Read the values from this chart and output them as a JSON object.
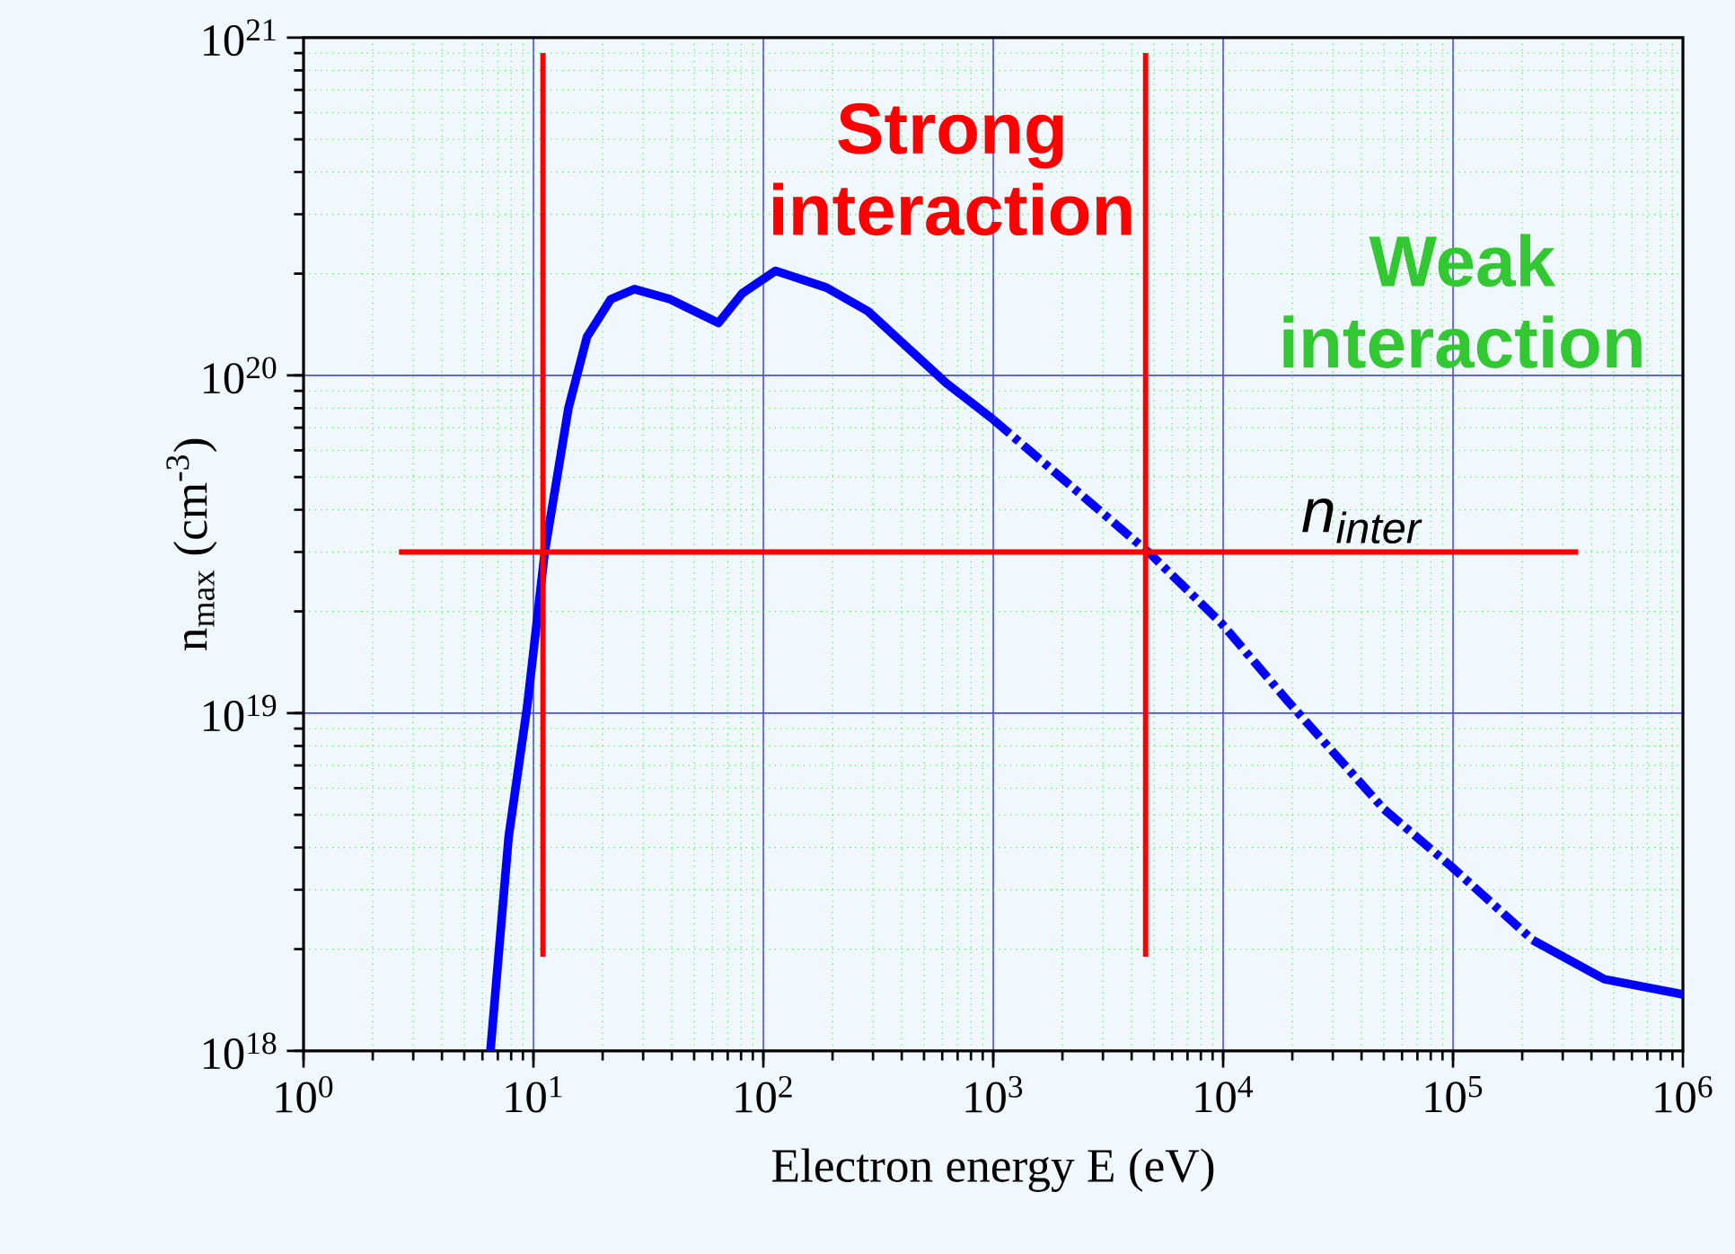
{
  "chart_data": {
    "type": "line",
    "xlabel": "Electron energy E (eV)",
    "ylabel": "n$_{max}$ (cm$^{-3}$)",
    "log": "xy",
    "grid": true,
    "marker": "none",
    "xlim": [
      1,
      1000000
    ],
    "ylim": [
      1e+18,
      1e+21
    ],
    "xticks": [
      {
        "value": 1,
        "label": "10$^{0}$"
      },
      {
        "value": 10,
        "label": "10$^{1}$"
      },
      {
        "value": 100,
        "label": "10$^{2}$"
      },
      {
        "value": 1000,
        "label": "10$^{3}$"
      },
      {
        "value": 10000,
        "label": "10$^{4}$"
      },
      {
        "value": 100000,
        "label": "10$^{5}$"
      },
      {
        "value": 1000000,
        "label": "10$^{6}$"
      }
    ],
    "yticks": [
      {
        "value": 1e+18,
        "label": "10$^{18}$"
      },
      {
        "value": 1e+19,
        "label": "10$^{19}$"
      },
      {
        "value": 1e+20,
        "label": "10$^{20}$"
      },
      {
        "value": 1e+21,
        "label": "10$^{21}$"
      }
    ],
    "series": [
      {
        "color": "#0000ff",
        "line_style": "solid",
        "x": [
          6.5,
          7.8,
          9.4,
          11.2,
          14.2,
          17.1,
          21.7,
          27.5,
          39.4,
          63.8,
          81,
          113,
          188,
          285,
          623,
          1000
        ],
        "values": [
          1e+18,
          4.3e+18,
          1.05e+19,
          3e+19,
          8e+19,
          1.3e+20,
          1.68e+20,
          1.8e+20,
          1.68e+20,
          1.43e+20,
          1.75e+20,
          2.04e+20,
          1.82e+20,
          1.55e+20,
          9.5e+19,
          7.4e+19
        ]
      },
      {
        "color": "#0000ff",
        "line_style": "dashed",
        "x": [
          1000,
          4800,
          9800,
          19000,
          50000,
          99000,
          222000
        ],
        "values": [
          7.4e+19,
          2.97e+19,
          1.85e+19,
          1.09e+19,
          5.2e+18,
          3.5e+18,
          2.13e+18
        ]
      },
      {
        "color": "#0000ff",
        "line_style": "solid",
        "x": [
          222000,
          456000,
          1000000
        ],
        "values": [
          2.13e+18,
          1.63e+18,
          1.47e+18
        ]
      }
    ],
    "ref_lines": [
      {
        "axis": "x",
        "value": 11,
        "color": "#ff0000"
      },
      {
        "axis": "x",
        "value": 4600,
        "color": "#ff0000"
      },
      {
        "axis": "y",
        "value": 3e+19,
        "color": "#ff0000",
        "label": "n$_{inter}$"
      }
    ],
    "annotations": [
      "Strong interaction",
      "Weak interaction"
    ]
  }
}
